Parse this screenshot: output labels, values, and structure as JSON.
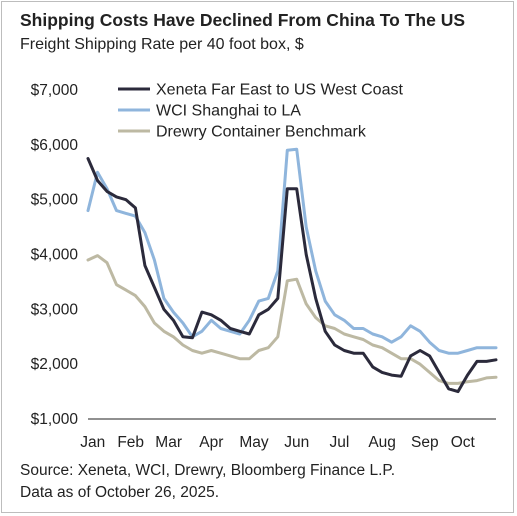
{
  "title": "Shipping Costs Have Declined From China To The US",
  "subtitle": "Freight Shipping Rate per 40 foot box, $",
  "source": "Source: Xeneta, WCI, Drewry, Bloomberg Finance L.P.",
  "as_of": "Data as of October 26, 2025.",
  "colors": {
    "xeneta": "#2b2a3b",
    "wci": "#8fb5dc",
    "drewry": "#bdb9a3",
    "axis": "#222222"
  },
  "chart_data": {
    "type": "line",
    "title": "Shipping Costs Have Declined From China To The US",
    "subtitle": "Freight Shipping Rate per 40 foot box, $",
    "xlabel": "",
    "ylabel": "",
    "ylim": [
      1000,
      7000
    ],
    "yticks": [
      7000,
      6000,
      5000,
      4000,
      3000,
      2000,
      1000
    ],
    "ytick_labels": [
      "$7,000",
      "$6,000",
      "$5,000",
      "$4,000",
      "$3,000",
      "$2,000",
      "$1,000"
    ],
    "xlim": [
      0,
      43
    ],
    "x_tick_labels": [
      "Jan",
      "Feb",
      "Mar",
      "Apr",
      "May",
      "Jun",
      "Jul",
      "Aug",
      "Sep",
      "Oct"
    ],
    "x_tick_positions": [
      0.5,
      4.5,
      8.5,
      13.0,
      17.5,
      22.0,
      26.5,
      31.0,
      35.5,
      39.5
    ],
    "grid": false,
    "legend_position": "top-right",
    "series": [
      {
        "name": "Xeneta Far East to US West Coast",
        "color": "#2b2a3b",
        "x": [
          0,
          1,
          2,
          3,
          4,
          5,
          6,
          7,
          8,
          9,
          10,
          11,
          12,
          13,
          14,
          15,
          16,
          17,
          18,
          19,
          20,
          21,
          22,
          23,
          24,
          25,
          26,
          27,
          28,
          29,
          30,
          31,
          32,
          33,
          34,
          35,
          36,
          37,
          38,
          39,
          40,
          41,
          42,
          43
        ],
        "values": [
          5750,
          5350,
          5150,
          5050,
          5000,
          4850,
          3800,
          3400,
          3000,
          2800,
          2500,
          2480,
          2950,
          2900,
          2800,
          2650,
          2600,
          2550,
          2900,
          3000,
          3200,
          5200,
          5200,
          4000,
          3200,
          2600,
          2350,
          2250,
          2200,
          2200,
          1950,
          1850,
          1800,
          1780,
          2150,
          2250,
          2150,
          1850,
          1550,
          1500,
          1800,
          2050,
          2050,
          2080
        ]
      },
      {
        "name": "WCI Shanghai to LA",
        "color": "#8fb5dc",
        "x": [
          0,
          1,
          2,
          3,
          4,
          5,
          6,
          7,
          8,
          9,
          10,
          11,
          12,
          13,
          14,
          15,
          16,
          17,
          18,
          19,
          20,
          21,
          22,
          23,
          24,
          25,
          26,
          27,
          28,
          29,
          30,
          31,
          32,
          33,
          34,
          35,
          36,
          37,
          38,
          39,
          40,
          41,
          42,
          43
        ],
        "values": [
          4800,
          5500,
          5200,
          4800,
          4750,
          4700,
          4400,
          3900,
          3200,
          2950,
          2750,
          2500,
          2600,
          2800,
          2650,
          2600,
          2550,
          2800,
          3150,
          3200,
          3700,
          5900,
          5920,
          4500,
          3700,
          3150,
          2900,
          2800,
          2650,
          2650,
          2550,
          2500,
          2400,
          2500,
          2700,
          2600,
          2400,
          2250,
          2200,
          2200,
          2250,
          2300,
          2300,
          2300
        ]
      },
      {
        "name": "Drewry Container Benchmark",
        "color": "#bdb9a3",
        "x": [
          0,
          1,
          2,
          3,
          4,
          5,
          6,
          7,
          8,
          9,
          10,
          11,
          12,
          13,
          14,
          15,
          16,
          17,
          18,
          19,
          20,
          21,
          22,
          23,
          24,
          25,
          26,
          27,
          28,
          29,
          30,
          31,
          32,
          33,
          34,
          35,
          36,
          37,
          38,
          39,
          40,
          41,
          42,
          43
        ],
        "values": [
          3900,
          3980,
          3850,
          3450,
          3350,
          3250,
          3050,
          2750,
          2600,
          2500,
          2350,
          2250,
          2200,
          2250,
          2200,
          2150,
          2100,
          2100,
          2250,
          2300,
          2500,
          3520,
          3550,
          3100,
          2850,
          2700,
          2650,
          2550,
          2500,
          2450,
          2350,
          2300,
          2200,
          2100,
          2100,
          2000,
          1850,
          1700,
          1650,
          1650,
          1680,
          1700,
          1750,
          1760
        ]
      }
    ]
  }
}
